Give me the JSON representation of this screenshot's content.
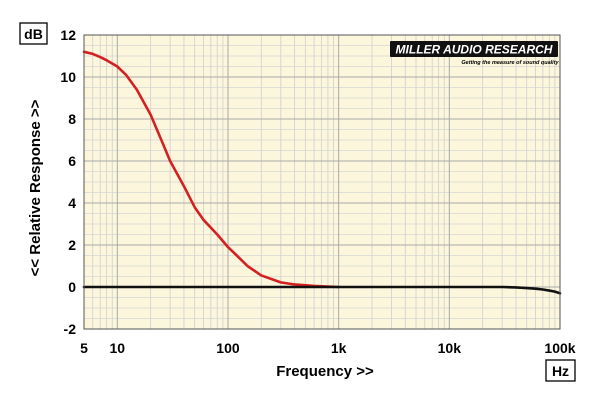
{
  "chart_data": {
    "type": "line",
    "ylabel": "<< Relative Response >>",
    "xlabel": "Frequency >>",
    "y_unit": "dB",
    "x_unit": "Hz",
    "xscale": "log",
    "xlim": [
      5,
      100000
    ],
    "ylim": [
      -2,
      12
    ],
    "yticks": [
      -2,
      0,
      2,
      4,
      6,
      8,
      10,
      12
    ],
    "xticks": [
      {
        "value": 5,
        "label": "5"
      },
      {
        "value": 10,
        "label": "10"
      },
      {
        "value": 100,
        "label": "100"
      },
      {
        "value": 1000,
        "label": "1k"
      },
      {
        "value": 10000,
        "label": "10k"
      },
      {
        "value": 100000,
        "label": "100k"
      }
    ],
    "grid": true,
    "series": [
      {
        "color": "#d42020",
        "x": [
          5,
          6,
          7,
          8,
          10,
          12,
          15,
          20,
          25,
          30,
          40,
          50,
          60,
          80,
          100,
          120,
          150,
          200,
          300,
          400,
          600,
          1000
        ],
        "y": [
          11.2,
          11.1,
          10.95,
          10.8,
          10.5,
          10.1,
          9.4,
          8.2,
          7.0,
          6.0,
          4.8,
          3.8,
          3.2,
          2.5,
          1.9,
          1.5,
          1.0,
          0.55,
          0.22,
          0.12,
          0.05,
          0.0
        ]
      },
      {
        "color": "#111111",
        "x": [
          5,
          10,
          100,
          1000,
          10000,
          30000,
          40000,
          50000,
          60000,
          70000,
          80000,
          90000,
          100000
        ],
        "y": [
          0,
          0,
          0,
          0,
          0,
          0,
          -0.02,
          -0.05,
          -0.08,
          -0.12,
          -0.17,
          -0.22,
          -0.3
        ]
      }
    ]
  },
  "logo": {
    "name": "MILLER AUDIO RESEARCH",
    "tagline": "Getting the measure of sound quality"
  }
}
